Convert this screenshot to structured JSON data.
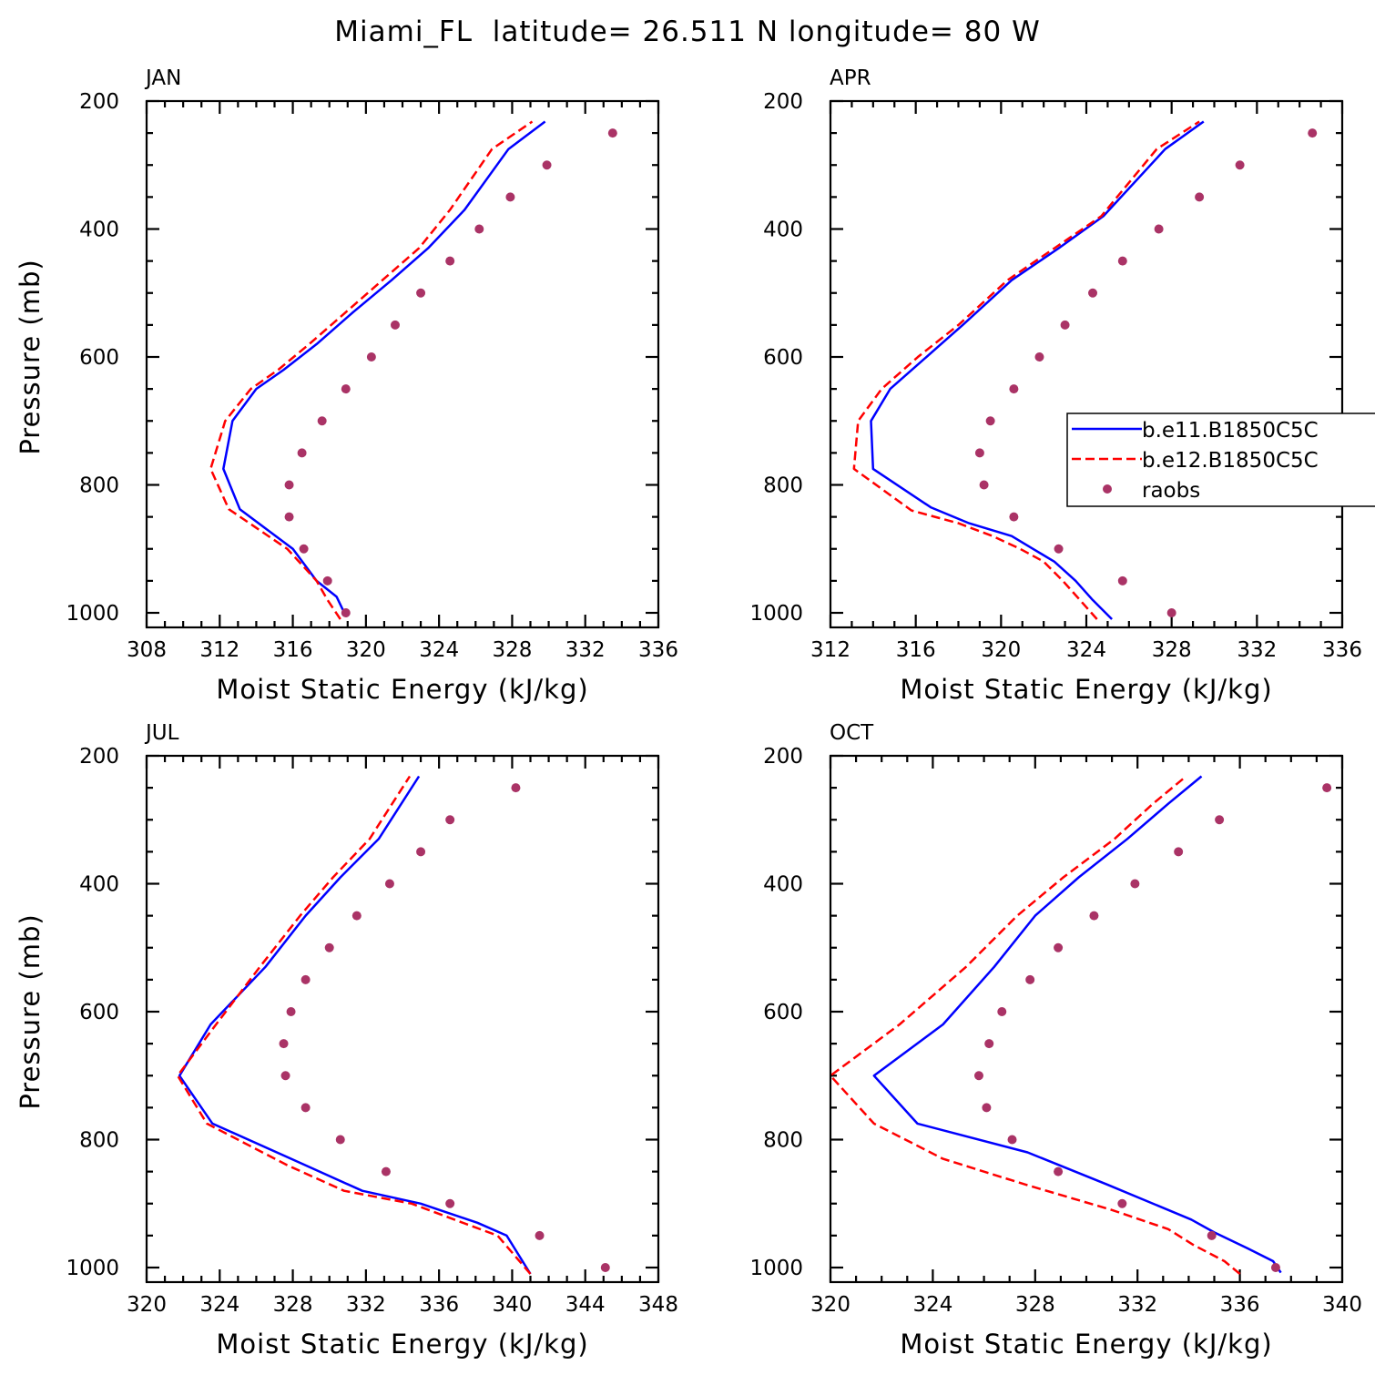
{
  "figure": {
    "title": "Miami_FL  latitude= 26.511 N longitude= 80 W"
  },
  "colors": {
    "model1": "#0000ff",
    "model2": "#ff0000",
    "raobs": "#aa3366"
  },
  "legend": {
    "panel": 1,
    "entries": [
      {
        "label": "b.e11.B1850C5C",
        "style": "solid",
        "color": "#0000ff"
      },
      {
        "label": "b.e12.B1850C5C",
        "style": "dashed",
        "color": "#ff0000"
      },
      {
        "label": "raobs",
        "style": "marker",
        "color": "#aa3366"
      }
    ]
  },
  "chart_data": [
    {
      "type": "line",
      "title": "JAN",
      "xlabel": "Moist Static Energy (kJ/kg)",
      "ylabel": "Pressure (mb)",
      "xlim": [
        308,
        336
      ],
      "ylim": [
        1000,
        200
      ],
      "xticks": [
        308,
        312,
        316,
        320,
        324,
        328,
        332,
        336
      ],
      "yticks": [
        200,
        400,
        600,
        800,
        1000
      ],
      "series": [
        {
          "name": "b.e11.B1850C5C",
          "style": "solid",
          "color": "#0000ff",
          "x": [
            318.9,
            318.4,
            317.3,
            316.0,
            313.1,
            312.2,
            312.7,
            314.0,
            315.5,
            317.3,
            319.3,
            321.4,
            323.4,
            325.4,
            327.8,
            329.8
          ],
          "y": [
            1005,
            975,
            950,
            900,
            838,
            775,
            700,
            650,
            620,
            580,
            530,
            480,
            430,
            370,
            275,
            232
          ]
        },
        {
          "name": "b.e12.B1850C5C",
          "style": "dashed",
          "color": "#ff0000",
          "x": [
            318.6,
            317.9,
            317.3,
            315.7,
            312.5,
            311.5,
            312.3,
            313.7,
            315.2,
            316.9,
            318.9,
            320.9,
            322.9,
            324.6,
            326.9,
            329.1
          ],
          "y": [
            1010,
            980,
            950,
            900,
            838,
            775,
            700,
            650,
            620,
            580,
            530,
            480,
            430,
            370,
            275,
            232
          ]
        },
        {
          "name": "raobs",
          "style": "marker",
          "color": "#aa3366",
          "x": [
            318.9,
            317.9,
            316.6,
            315.8,
            315.8,
            316.5,
            317.6,
            318.9,
            320.3,
            321.6,
            323.0,
            324.6,
            326.2,
            327.9,
            329.9,
            333.5
          ],
          "y": [
            1000,
            950,
            900,
            850,
            800,
            750,
            700,
            650,
            600,
            550,
            500,
            450,
            400,
            350,
            300,
            250
          ]
        }
      ]
    },
    {
      "type": "line",
      "title": "APR",
      "xlabel": "Moist Static Energy (kJ/kg)",
      "ylabel": "",
      "xlim": [
        312,
        336
      ],
      "ylim": [
        1000,
        200
      ],
      "xticks": [
        312,
        316,
        320,
        324,
        328,
        332,
        336
      ],
      "yticks": [
        200,
        400,
        600,
        800,
        1000
      ],
      "series": [
        {
          "name": "b.e11.B1850C5C",
          "style": "solid",
          "color": "#0000ff",
          "x": [
            325.2,
            324.3,
            323.5,
            322.5,
            321.5,
            320.5,
            318.5,
            316.7,
            314.0,
            313.9,
            314.8,
            316.5,
            318.2,
            320.5,
            322.7,
            324.8,
            327.7,
            329.5
          ],
          "y": [
            1010,
            980,
            950,
            920,
            900,
            880,
            860,
            835,
            775,
            700,
            650,
            600,
            550,
            480,
            430,
            380,
            275,
            232
          ]
        },
        {
          "name": "b.e12.B1850C5C",
          "style": "dashed",
          "color": "#ff0000",
          "x": [
            324.5,
            323.7,
            322.9,
            322.0,
            320.9,
            319.6,
            318.0,
            315.8,
            313.1,
            313.3,
            314.4,
            316.1,
            318.0,
            320.3,
            322.5,
            324.7,
            327.3,
            329.3
          ],
          "y": [
            1010,
            980,
            950,
            920,
            900,
            880,
            860,
            840,
            775,
            700,
            650,
            600,
            550,
            480,
            430,
            380,
            275,
            232
          ]
        },
        {
          "name": "raobs",
          "style": "marker",
          "color": "#aa3366",
          "x": [
            328.0,
            325.7,
            322.7,
            320.6,
            319.2,
            319.0,
            319.5,
            320.6,
            321.8,
            323.0,
            324.3,
            325.7,
            327.4,
            329.3,
            331.2,
            334.6
          ],
          "y": [
            1000,
            950,
            900,
            850,
            800,
            750,
            700,
            650,
            600,
            550,
            500,
            450,
            400,
            350,
            300,
            250
          ]
        }
      ]
    },
    {
      "type": "line",
      "title": "JUL",
      "xlabel": "Moist Static Energy (kJ/kg)",
      "ylabel": "Pressure (mb)",
      "xlim": [
        320,
        348
      ],
      "ylim": [
        1000,
        200
      ],
      "xticks": [
        320,
        324,
        328,
        332,
        336,
        340,
        344,
        348
      ],
      "yticks": [
        200,
        400,
        600,
        800,
        1000
      ],
      "series": [
        {
          "name": "b.e11.B1850C5C",
          "style": "solid",
          "color": "#0000ff",
          "x": [
            341.0,
            339.7,
            338.1,
            335.0,
            331.8,
            328.3,
            323.6,
            321.8,
            323.5,
            326.5,
            328.7,
            330.6,
            332.7,
            334.9
          ],
          "y": [
            1010,
            950,
            930,
            900,
            880,
            835,
            775,
            700,
            620,
            530,
            450,
            390,
            330,
            232
          ]
        },
        {
          "name": "b.e12.B1850C5C",
          "style": "dashed",
          "color": "#ff0000",
          "x": [
            341.0,
            339.2,
            337.3,
            334.5,
            330.8,
            327.7,
            323.3,
            321.7,
            323.8,
            326.2,
            328.4,
            330.2,
            332.2,
            334.4
          ],
          "y": [
            1010,
            950,
            930,
            900,
            880,
            840,
            775,
            700,
            620,
            530,
            450,
            390,
            330,
            232
          ]
        },
        {
          "name": "raobs",
          "style": "marker",
          "color": "#aa3366",
          "x": [
            345.1,
            341.5,
            336.6,
            333.1,
            330.6,
            328.7,
            327.6,
            327.5,
            327.9,
            328.7,
            330.0,
            331.5,
            333.3,
            335.0,
            336.6,
            340.2
          ],
          "y": [
            1000,
            950,
            900,
            850,
            800,
            750,
            700,
            650,
            600,
            550,
            500,
            450,
            400,
            350,
            300,
            250
          ]
        }
      ]
    },
    {
      "type": "line",
      "title": "OCT",
      "xlabel": "Moist Static Energy (kJ/kg)",
      "ylabel": "",
      "xlim": [
        320,
        340
      ],
      "ylim": [
        1000,
        200
      ],
      "xticks": [
        320,
        324,
        328,
        332,
        336,
        340
      ],
      "yticks": [
        200,
        400,
        600,
        800,
        1000
      ],
      "series": [
        {
          "name": "b.e11.B1850C5C",
          "style": "solid",
          "color": "#0000ff",
          "x": [
            337.6,
            337.3,
            336.3,
            335.0,
            334.1,
            330.8,
            327.7,
            323.4,
            321.7,
            324.4,
            326.4,
            328.0,
            329.7,
            331.6,
            333.2,
            334.5
          ],
          "y": [
            1008,
            990,
            970,
            945,
            925,
            870,
            820,
            775,
            700,
            620,
            530,
            450,
            390,
            330,
            275,
            232
          ]
        },
        {
          "name": "b.e12.B1850C5C",
          "style": "dashed",
          "color": "#ff0000",
          "x": [
            336.0,
            335.4,
            334.2,
            333.2,
            331.0,
            327.6,
            324.4,
            321.7,
            320.0,
            322.7,
            325.3,
            327.3,
            329.1,
            331.1,
            332.6,
            333.9
          ],
          "y": [
            1010,
            990,
            965,
            940,
            910,
            870,
            830,
            775,
            700,
            620,
            530,
            450,
            390,
            330,
            275,
            232
          ]
        },
        {
          "name": "raobs",
          "style": "marker",
          "color": "#aa3366",
          "x": [
            337.4,
            334.9,
            331.4,
            328.9,
            327.1,
            326.1,
            325.8,
            326.2,
            326.7,
            327.8,
            328.9,
            330.3,
            331.9,
            333.6,
            335.2,
            339.4
          ],
          "y": [
            1000,
            950,
            900,
            850,
            800,
            750,
            700,
            650,
            600,
            550,
            500,
            450,
            400,
            350,
            300,
            250
          ]
        }
      ]
    }
  ]
}
